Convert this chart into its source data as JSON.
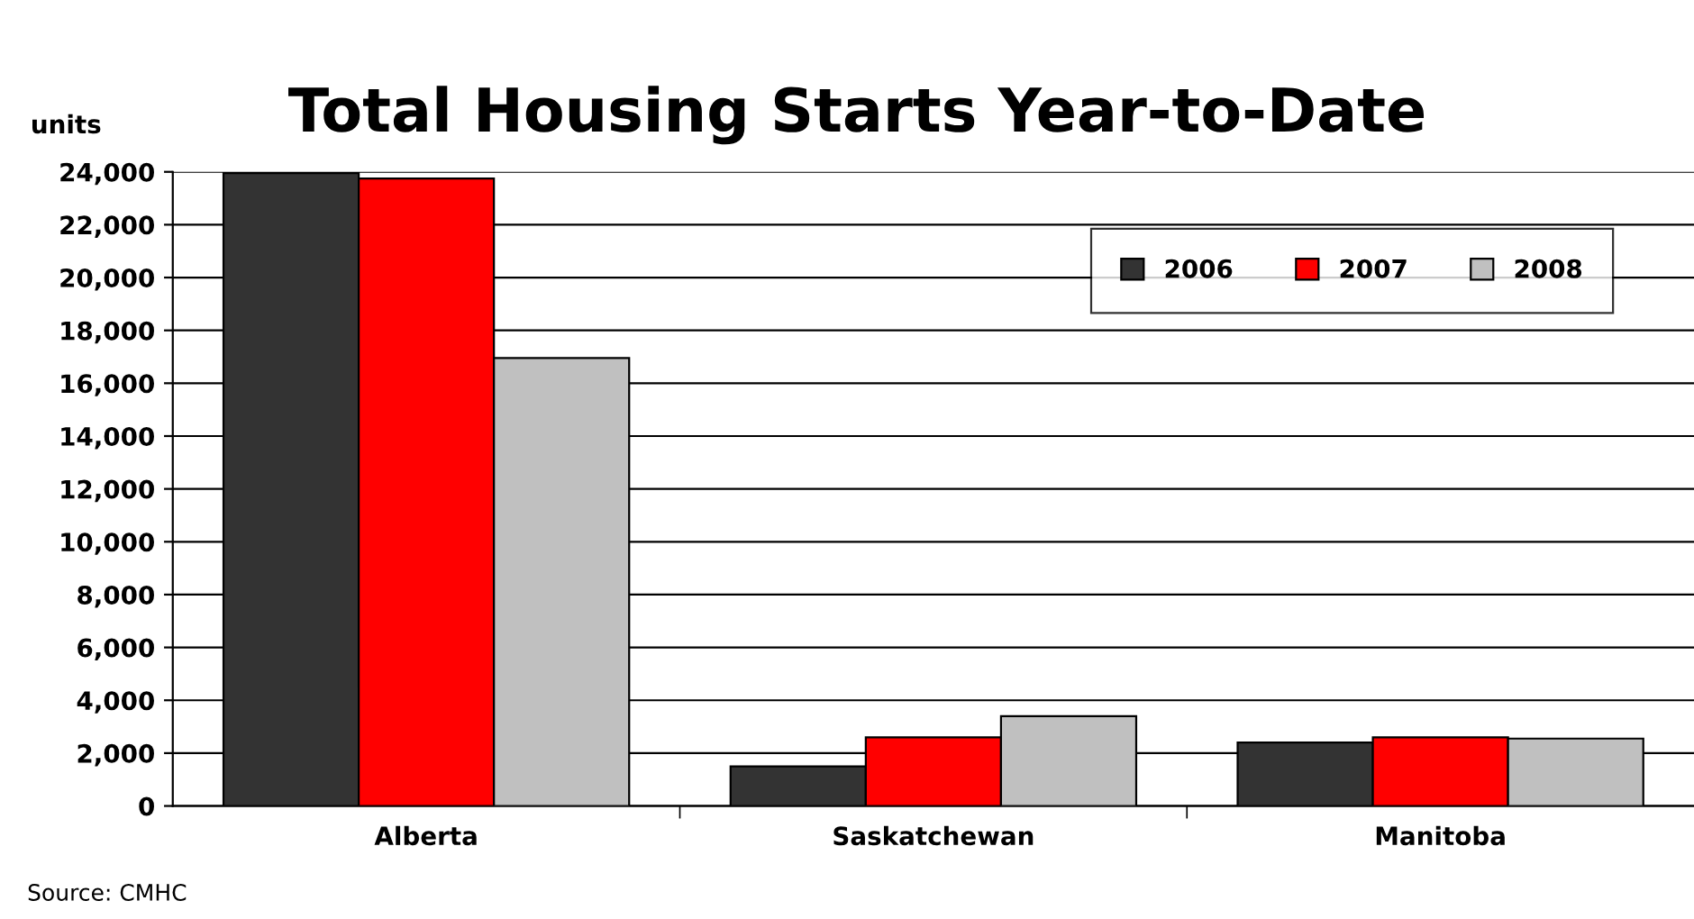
{
  "chart_data": {
    "type": "bar",
    "title": "Total Housing Starts Year-to-Date",
    "ylabel": "units",
    "categories": [
      "Alberta",
      "Saskatchewan",
      "Manitoba"
    ],
    "series": [
      {
        "name": "2006",
        "color": "#333333",
        "values": [
          23950,
          1500,
          2400
        ]
      },
      {
        "name": "2007",
        "color": "#ff0000",
        "values": [
          23750,
          2600,
          2600
        ]
      },
      {
        "name": "2008",
        "color": "#c0c0c0",
        "values": [
          16950,
          3400,
          2550
        ]
      }
    ],
    "ylim": [
      0,
      24000
    ],
    "yticks": [
      {
        "value": 0,
        "label": "0"
      },
      {
        "value": 2000,
        "label": "2,000"
      },
      {
        "value": 4000,
        "label": "4,000"
      },
      {
        "value": 6000,
        "label": "6,000"
      },
      {
        "value": 8000,
        "label": "8,000"
      },
      {
        "value": 10000,
        "label": "10,000"
      },
      {
        "value": 12000,
        "label": "12,000"
      },
      {
        "value": 14000,
        "label": "14,000"
      },
      {
        "value": 16000,
        "label": "16,000"
      },
      {
        "value": 18000,
        "label": "18,000"
      },
      {
        "value": 20000,
        "label": "20,000"
      },
      {
        "value": 22000,
        "label": "22,000"
      },
      {
        "value": 24000,
        "label": "24,000"
      }
    ],
    "grid": "y",
    "legend": "top right",
    "annotations": [
      "Source: CMHC"
    ]
  }
}
